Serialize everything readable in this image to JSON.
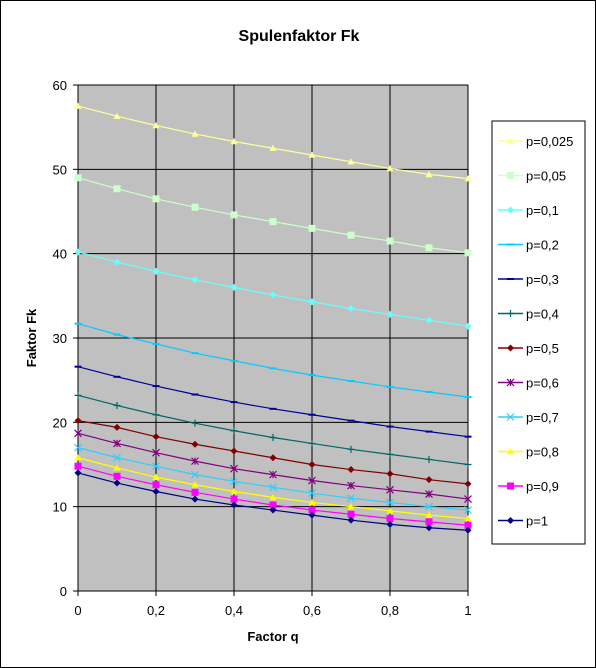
{
  "chart_data": {
    "type": "line",
    "title": "Spulenfaktor Fk",
    "xlabel": "Factor q",
    "ylabel": "Faktor Fk",
    "xlim": [
      0,
      1
    ],
    "ylim": [
      0,
      60
    ],
    "x_ticks": [
      "0",
      "0,2",
      "0,4",
      "0,6",
      "0,8",
      "1"
    ],
    "y_ticks": [
      "0",
      "10",
      "20",
      "30",
      "40",
      "50",
      "60"
    ],
    "x_tick_values": [
      0,
      0.2,
      0.4,
      0.6,
      0.8,
      1
    ],
    "y_tick_values": [
      0,
      10,
      20,
      30,
      40,
      50,
      60
    ],
    "grid": true,
    "plot_background": "#c0c0c0",
    "legend_position": "right",
    "x": [
      0,
      0.1,
      0.2,
      0.3,
      0.4,
      0.5,
      0.6,
      0.7,
      0.8,
      0.9,
      1
    ],
    "series": [
      {
        "name": "p=0,025",
        "color": "#ffff99",
        "marker": "triangle",
        "values": [
          57.5,
          56.3,
          55.2,
          54.2,
          53.3,
          52.5,
          51.7,
          50.9,
          50.1,
          49.4,
          48.9
        ]
      },
      {
        "name": "p=0,05",
        "color": "#ccffcc",
        "marker": "square",
        "values": [
          49.0,
          47.7,
          46.5,
          45.5,
          44.6,
          43.8,
          43.0,
          42.2,
          41.5,
          40.7,
          40.1
        ]
      },
      {
        "name": "p=0,1",
        "color": "#66ffff",
        "marker": "diamond",
        "values": [
          40.2,
          39.0,
          37.9,
          36.9,
          36.0,
          35.1,
          34.3,
          33.5,
          32.8,
          32.1,
          31.4
        ]
      },
      {
        "name": "p=0,2",
        "color": "#00ccff",
        "marker": "dash",
        "values": [
          31.7,
          30.4,
          29.3,
          28.2,
          27.3,
          26.4,
          25.6,
          24.9,
          24.2,
          23.6,
          23.0
        ]
      },
      {
        "name": "p=0,3",
        "color": "#000099",
        "marker": "dash",
        "values": [
          26.6,
          25.4,
          24.3,
          23.3,
          22.4,
          21.6,
          20.9,
          20.2,
          19.5,
          18.9,
          18.3
        ]
      },
      {
        "name": "p=0,4",
        "color": "#006666",
        "marker": "plus",
        "values": [
          23.2,
          22.0,
          20.9,
          19.9,
          19.0,
          18.2,
          17.5,
          16.8,
          16.2,
          15.6,
          15.0
        ]
      },
      {
        "name": "p=0,5",
        "color": "#800000",
        "marker": "diamond",
        "values": [
          20.2,
          19.4,
          18.3,
          17.4,
          16.6,
          15.8,
          15.0,
          14.4,
          13.9,
          13.2,
          12.7
        ]
      },
      {
        "name": "p=0,6",
        "color": "#800080",
        "marker": "star",
        "values": [
          18.7,
          17.5,
          16.4,
          15.4,
          14.5,
          13.8,
          13.1,
          12.5,
          12.0,
          11.5,
          10.9
        ]
      },
      {
        "name": "p=0,7",
        "color": "#33ccff",
        "marker": "x",
        "values": [
          17.0,
          15.8,
          14.8,
          13.8,
          13.0,
          12.3,
          11.6,
          11.0,
          10.5,
          10.0,
          9.6
        ]
      },
      {
        "name": "p=0,8",
        "color": "#ffff00",
        "marker": "triangle",
        "values": [
          15.8,
          14.6,
          13.5,
          12.6,
          11.8,
          11.1,
          10.5,
          10.0,
          9.5,
          9.0,
          8.6
        ]
      },
      {
        "name": "p=0,9",
        "color": "#ff00ff",
        "marker": "square",
        "values": [
          14.8,
          13.6,
          12.6,
          11.7,
          10.9,
          10.2,
          9.6,
          9.1,
          8.6,
          8.2,
          7.8
        ]
      },
      {
        "name": "p=1",
        "color": "#000080",
        "marker": "diamond",
        "values": [
          14.0,
          12.8,
          11.8,
          10.9,
          10.2,
          9.6,
          9.0,
          8.4,
          7.9,
          7.5,
          7.2
        ]
      }
    ]
  }
}
